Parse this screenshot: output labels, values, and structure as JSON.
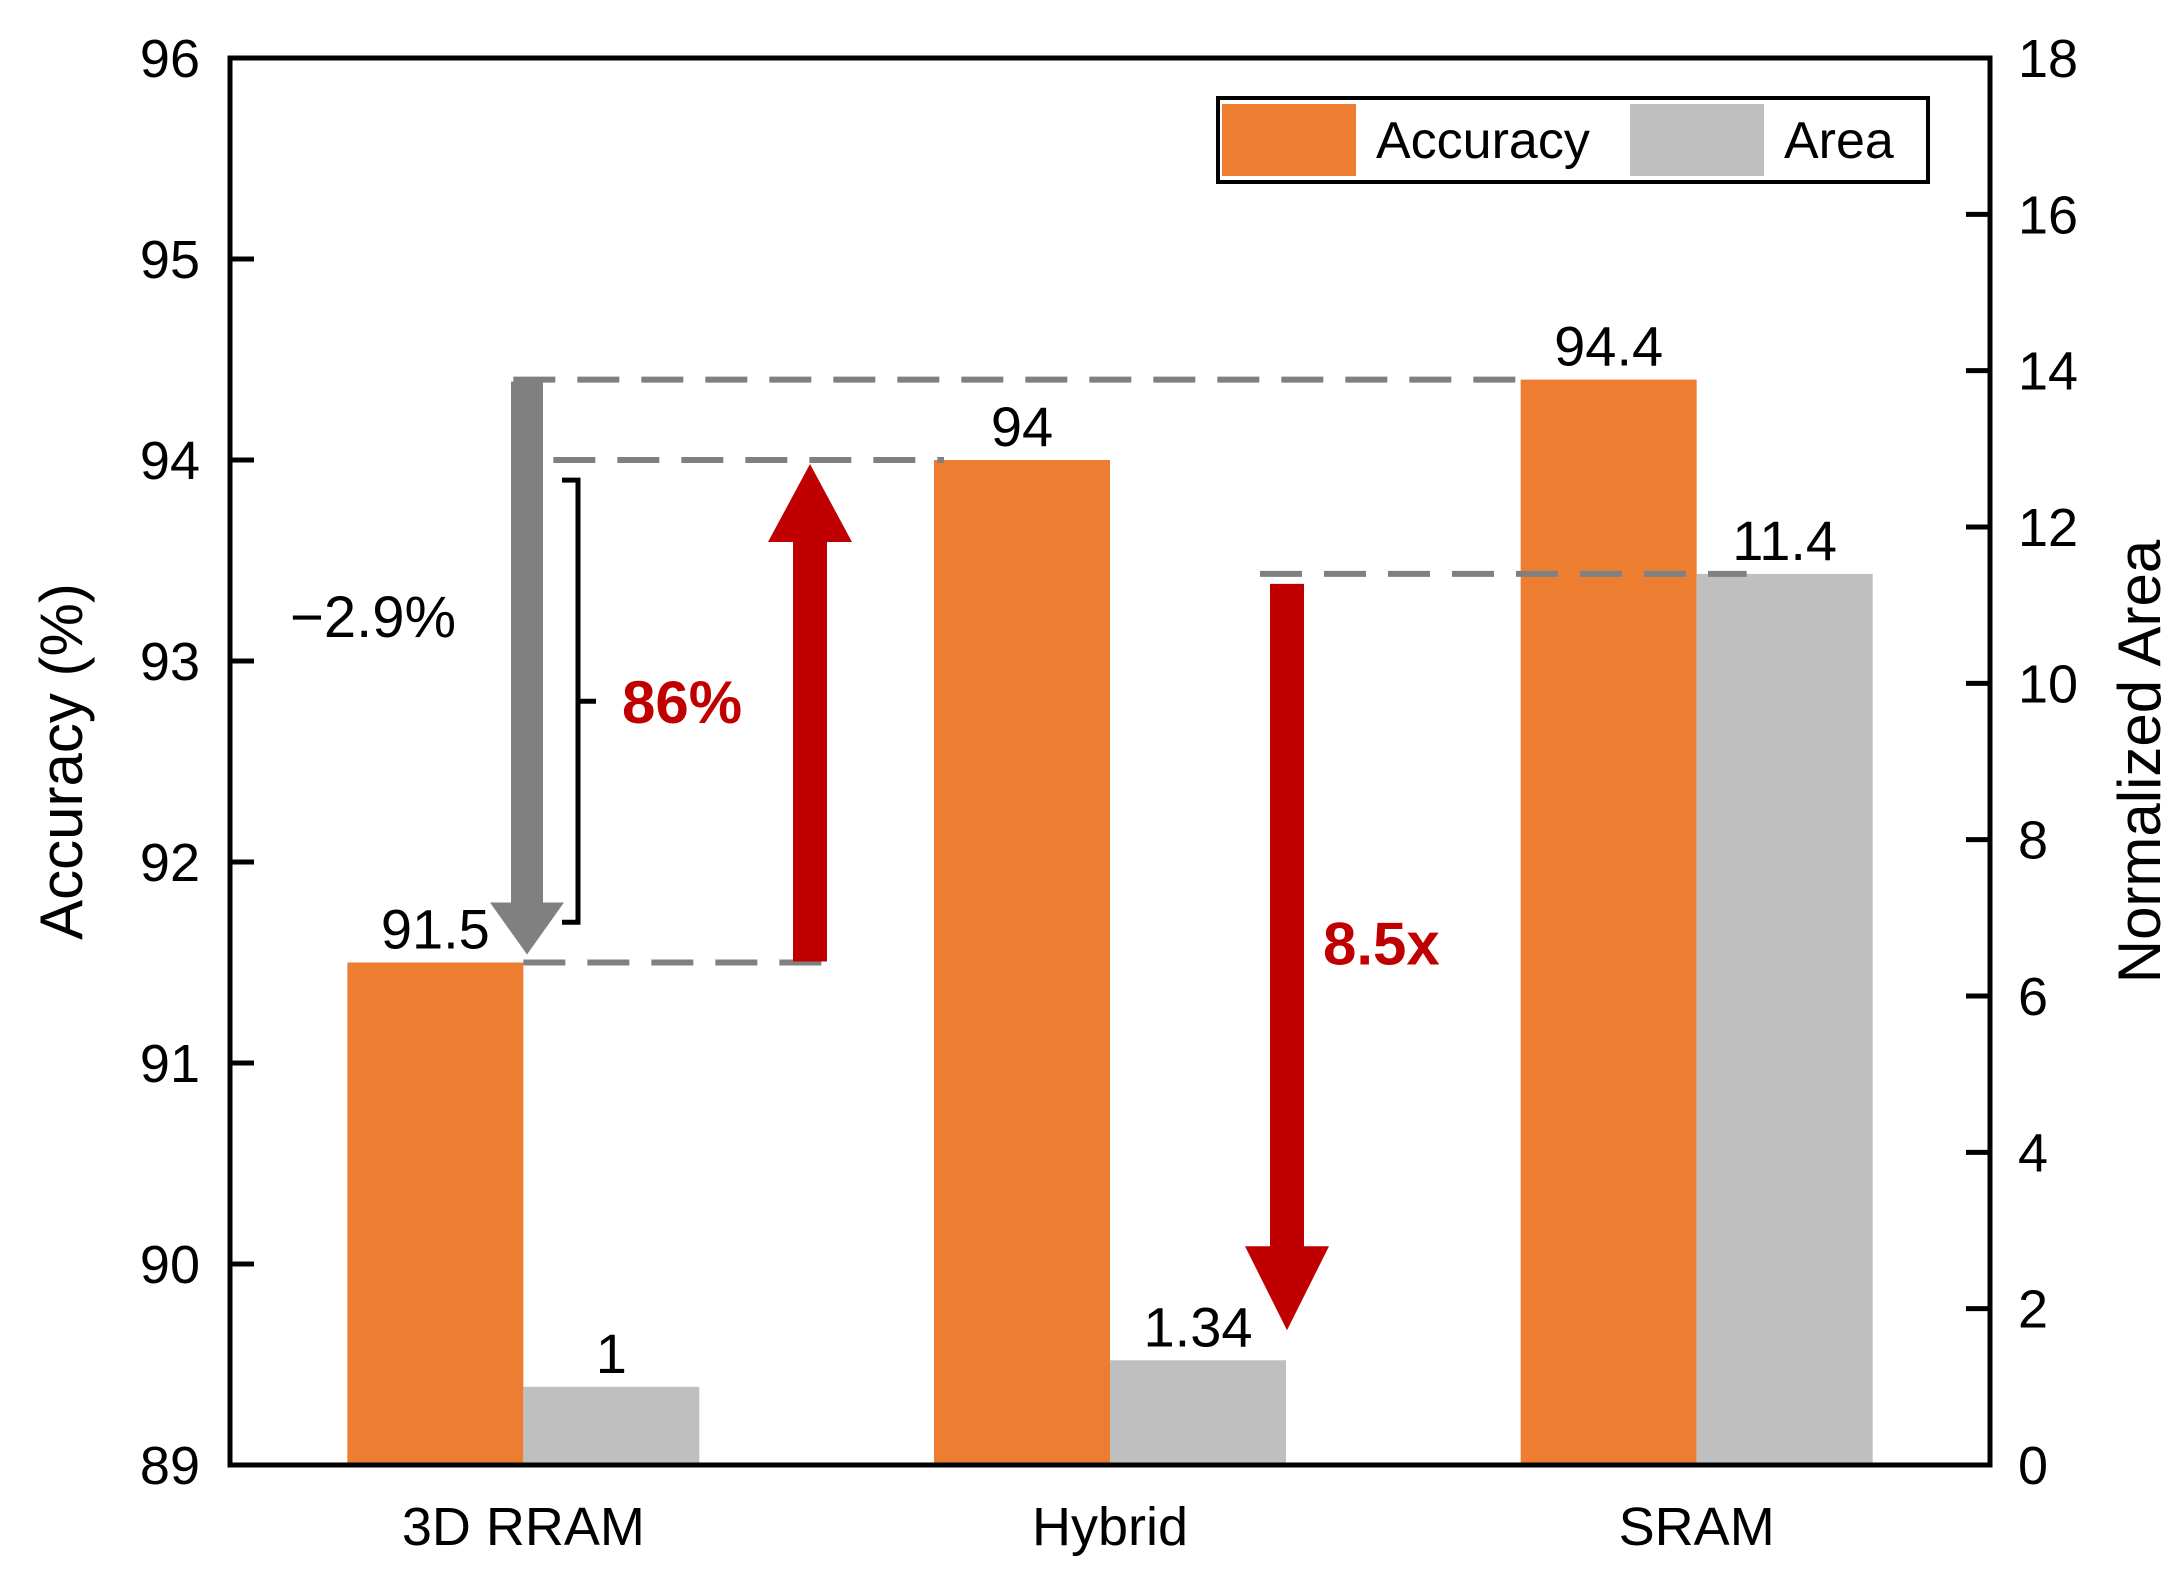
{
  "chart_data": {
    "type": "bar",
    "categories": [
      "3D RRAM",
      "Hybrid",
      "SRAM"
    ],
    "series": [
      {
        "name": "Accuracy",
        "axis": "left",
        "color": "#ED7D31",
        "values": [
          91.5,
          94,
          94.4
        ],
        "labels": [
          "91.5",
          "94",
          "94.4"
        ]
      },
      {
        "name": "Area",
        "axis": "right",
        "color": "#BFBFBF",
        "values": [
          1,
          1.34,
          11.4
        ],
        "labels": [
          "1",
          "1.34",
          "11.4"
        ]
      }
    ],
    "y_left": {
      "label": "Accuracy (%)",
      "range": [
        89,
        96
      ],
      "ticks": [
        "89",
        "90",
        "91",
        "92",
        "93",
        "94",
        "95",
        "96"
      ]
    },
    "y_right": {
      "label": "Normalized Area",
      "range": [
        0,
        18
      ],
      "ticks": [
        "0",
        "2",
        "4",
        "6",
        "8",
        "10",
        "12",
        "14",
        "16",
        "18"
      ]
    },
    "legend": {
      "position": "top-right",
      "entries": [
        "Accuracy",
        "Area"
      ]
    },
    "annotations": {
      "drop": {
        "text": "−2.9%",
        "from": 94.4,
        "to": 91.5,
        "color": "#808080"
      },
      "recovery": {
        "text": "86%",
        "from": 91.5,
        "to": 94,
        "color": "#C00000"
      },
      "area_reduction": {
        "text": "8.5x",
        "from": 11.4,
        "to": 1.34,
        "color": "#C00000"
      }
    }
  }
}
